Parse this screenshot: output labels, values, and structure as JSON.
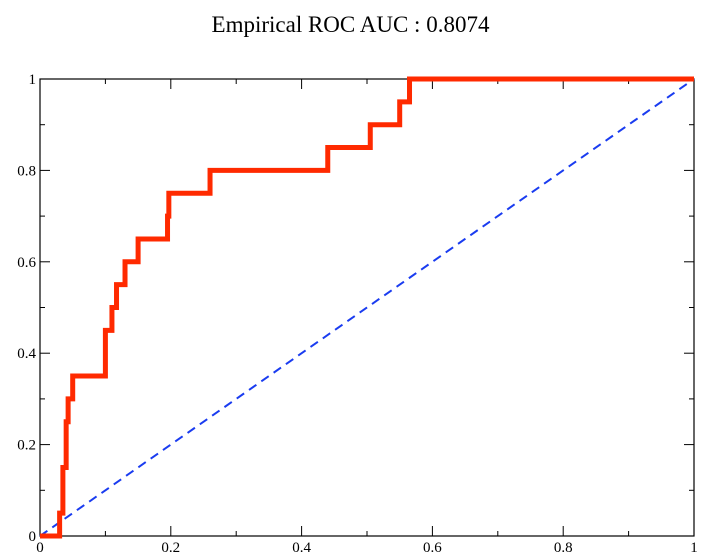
{
  "chart_data": {
    "type": "line",
    "title": "Empirical ROC AUC : 0.8074",
    "xlabel": "",
    "ylabel": "",
    "xlim": [
      0,
      1
    ],
    "ylim": [
      0,
      1
    ],
    "x_ticks": [
      0,
      0.2,
      0.4,
      0.6,
      0.8,
      1
    ],
    "x_tick_labels": [
      "0",
      "0.2",
      "0.4",
      "0.6",
      "0.8",
      "1"
    ],
    "y_ticks": [
      0,
      0.2,
      0.4,
      0.6,
      0.8,
      1
    ],
    "y_tick_labels": [
      "0",
      "0.2",
      "0.4",
      "0.6",
      "0.8",
      "1"
    ],
    "grid": false,
    "series": [
      {
        "color": "#ff2a00",
        "style": "solid",
        "points": [
          [
            0,
            0
          ],
          [
            0.03,
            0
          ],
          [
            0.03,
            0.05
          ],
          [
            0.035,
            0.05
          ],
          [
            0.035,
            0.15
          ],
          [
            0.04,
            0.15
          ],
          [
            0.04,
            0.25
          ],
          [
            0.043,
            0.25
          ],
          [
            0.043,
            0.3
          ],
          [
            0.05,
            0.3
          ],
          [
            0.05,
            0.35
          ],
          [
            0.1,
            0.35
          ],
          [
            0.1,
            0.45
          ],
          [
            0.11,
            0.45
          ],
          [
            0.11,
            0.5
          ],
          [
            0.117,
            0.5
          ],
          [
            0.117,
            0.55
          ],
          [
            0.13,
            0.55
          ],
          [
            0.13,
            0.6
          ],
          [
            0.15,
            0.6
          ],
          [
            0.15,
            0.65
          ],
          [
            0.195,
            0.65
          ],
          [
            0.195,
            0.7
          ],
          [
            0.197,
            0.7
          ],
          [
            0.197,
            0.75
          ],
          [
            0.26,
            0.75
          ],
          [
            0.26,
            0.8
          ],
          [
            0.44,
            0.8
          ],
          [
            0.44,
            0.85
          ],
          [
            0.505,
            0.85
          ],
          [
            0.505,
            0.9
          ],
          [
            0.55,
            0.9
          ],
          [
            0.55,
            0.95
          ],
          [
            0.565,
            0.95
          ],
          [
            0.565,
            1
          ],
          [
            1,
            1
          ]
        ]
      },
      {
        "color": "#1a3cf0",
        "style": "dashed",
        "points": [
          [
            0,
            0
          ],
          [
            1,
            1
          ]
        ]
      }
    ]
  }
}
